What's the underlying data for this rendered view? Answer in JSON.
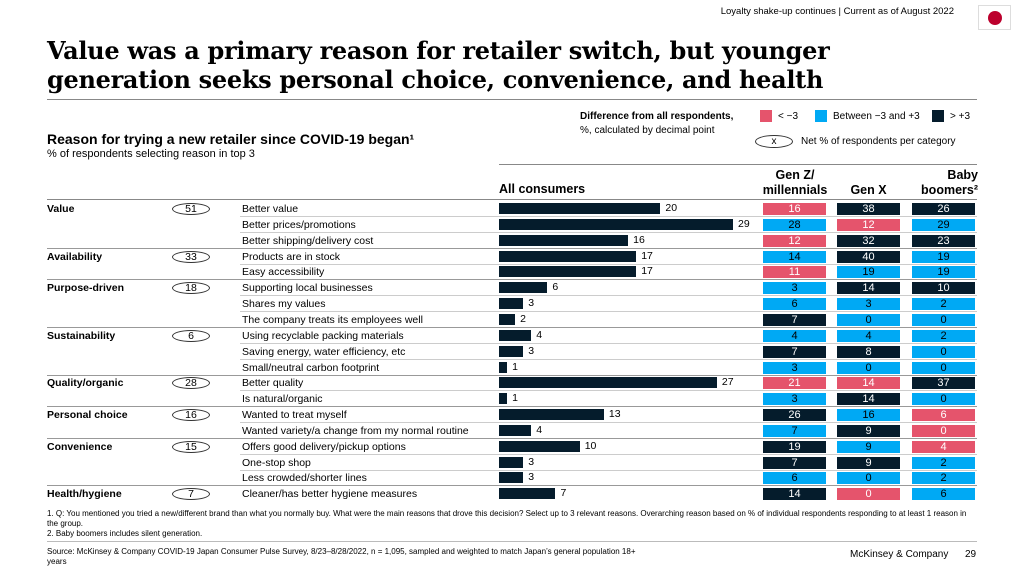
{
  "header": {
    "tracker": "Loyalty shake-up continues | Current as of August 2022",
    "flag": "japan-flag"
  },
  "title": "Value was a primary reason for retailer switch, but younger generation seeks personal choice, convenience, and health",
  "legend": {
    "title_bold": "Difference from all respondents,",
    "title_sub": "%, calculated by decimal point",
    "items": [
      {
        "label": "< −3",
        "color": "#e5546c"
      },
      {
        "label": "Between −3 and +3",
        "color": "#00a9f4"
      },
      {
        "label": "> +3",
        "color": "#051c2c"
      }
    ],
    "ellipse_symbol": "x",
    "ellipse_label": "Net % of respondents per category"
  },
  "chart_data": {
    "type": "bar",
    "title": "Reason for trying a new retailer since COVID-19 began¹",
    "subtitle": "% of respondents selecting reason in top 3",
    "columns": {
      "all": "All consumers",
      "genz_1": "Gen Z/",
      "genz_2": "millennials",
      "genx": "Gen X",
      "boomers_1": "Baby",
      "boomers_2": "boomers²"
    },
    "groups": [
      {
        "name": "Value",
        "net": 51,
        "rows": [
          {
            "reason": "Better value",
            "all": 20,
            "genz": 16,
            "genx": 38,
            "boomers": 26
          },
          {
            "reason": "Better prices/promotions",
            "all": 29,
            "genz": 28,
            "genx": 12,
            "boomers": 29
          },
          {
            "reason": "Better shipping/delivery cost",
            "all": 16,
            "genz": 12,
            "genx": 32,
            "boomers": 23
          }
        ]
      },
      {
        "name": "Availability",
        "net": 33,
        "rows": [
          {
            "reason": "Products are in stock",
            "all": 17,
            "genz": 14,
            "genx": 40,
            "boomers": 19
          },
          {
            "reason": "Easy accessibility",
            "all": 17,
            "genz": 11,
            "genx": 19,
            "boomers": 19
          }
        ]
      },
      {
        "name": "Purpose-driven",
        "net": 18,
        "rows": [
          {
            "reason": "Supporting local businesses",
            "all": 6,
            "genz": 3,
            "genx": 14,
            "boomers": 10
          },
          {
            "reason": "Shares my values",
            "all": 3,
            "genz": 6,
            "genx": 3,
            "boomers": 2
          },
          {
            "reason": "The company treats its employees well",
            "all": 2,
            "genz": 7,
            "genx": 0,
            "boomers": 0
          }
        ]
      },
      {
        "name": "Sustainability",
        "net": 6,
        "rows": [
          {
            "reason": "Using recyclable packing materials",
            "all": 4,
            "genz": 4,
            "genx": 4,
            "boomers": 2
          },
          {
            "reason": "Saving energy, water efficiency, etc",
            "all": 3,
            "genz": 7,
            "genx": 8,
            "boomers": 0
          },
          {
            "reason": "Small/neutral carbon footprint",
            "all": 1,
            "genz": 3,
            "genx": 0,
            "boomers": 0
          }
        ]
      },
      {
        "name": "Quality/organic",
        "net": 28,
        "rows": [
          {
            "reason": "Better quality",
            "all": 27,
            "genz": 21,
            "genx": 14,
            "boomers": 37
          },
          {
            "reason": "Is natural/organic",
            "all": 1,
            "genz": 3,
            "genx": 14,
            "boomers": 0
          }
        ]
      },
      {
        "name": "Personal choice",
        "net": 16,
        "rows": [
          {
            "reason": "Wanted to treat myself",
            "all": 13,
            "genz": 26,
            "genx": 16,
            "boomers": 6
          },
          {
            "reason": "Wanted variety/a change from my normal routine",
            "all": 4,
            "genz": 7,
            "genx": 9,
            "boomers": 0
          }
        ]
      },
      {
        "name": "Convenience",
        "net": 15,
        "rows": [
          {
            "reason": "Offers good delivery/pickup options",
            "all": 10,
            "genz": 19,
            "genx": 9,
            "boomers": 4
          },
          {
            "reason": "One-stop shop",
            "all": 3,
            "genz": 7,
            "genx": 9,
            "boomers": 2
          },
          {
            "reason": "Less crowded/shorter lines",
            "all": 3,
            "genz": 6,
            "genx": 0,
            "boomers": 2
          }
        ]
      },
      {
        "name": "Health/hygiene",
        "net": 7,
        "rows": [
          {
            "reason": "Cleaner/has better hygiene measures",
            "all": 7,
            "genz": 14,
            "genx": 0,
            "boomers": 6
          }
        ]
      }
    ]
  },
  "footnotes": [
    "1.  Q: You mentioned you tried a new/different brand than what you normally buy. What were the main reasons that drove this decision? Select up to 3 relevant reasons. Overarching reason based on % of individual respondents responding to at least 1 reason in the group.",
    "2.  Baby boomers includes silent generation."
  ],
  "source": "Source: McKinsey & Company COVID-19 Japan Consumer Pulse Survey, 8/23–8/28/2022, n = 1,095, sampled and weighted to match Japan’s general population 18+ years",
  "brand": "McKinsey & Company",
  "page": "29"
}
